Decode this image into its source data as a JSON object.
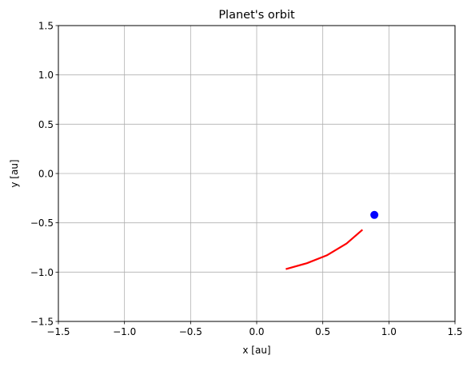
{
  "chart_data": {
    "type": "line",
    "title": "Planet's orbit",
    "xlabel": "x [au]",
    "ylabel": "y [au]",
    "xlim": [
      -1.5,
      1.5
    ],
    "ylim": [
      -1.5,
      1.5
    ],
    "xticks": [
      -1.5,
      -1.0,
      -0.5,
      0.0,
      0.5,
      1.0,
      1.5
    ],
    "yticks": [
      -1.5,
      -1.0,
      -0.5,
      0.0,
      0.5,
      1.0,
      1.5
    ],
    "xtick_labels": [
      "−1.5",
      "−1.0",
      "−0.5",
      "0.0",
      "0.5",
      "1.0",
      "1.5"
    ],
    "ytick_labels": [
      "−1.5",
      "−1.0",
      "−0.5",
      "0.0",
      "0.5",
      "1.0",
      "1.5"
    ],
    "grid": true,
    "series": [
      {
        "kind": "line",
        "color": "#ff0000",
        "x": [
          0.22,
          0.38,
          0.53,
          0.68,
          0.8
        ],
        "y": [
          -0.97,
          -0.91,
          -0.83,
          -0.71,
          -0.57
        ]
      },
      {
        "kind": "point",
        "color": "#0000ff",
        "x": [
          0.89
        ],
        "y": [
          -0.42
        ]
      }
    ]
  }
}
